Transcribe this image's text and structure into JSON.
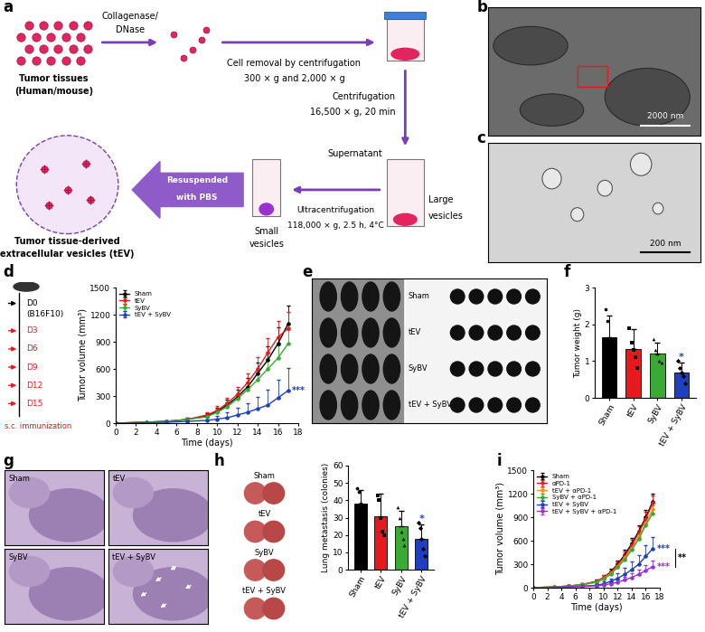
{
  "panel_letters": [
    "a",
    "b",
    "c",
    "d",
    "e",
    "f",
    "g",
    "h",
    "i"
  ],
  "diagram": {
    "tissue": [
      "Tumor tissues",
      "(Human/mouse)"
    ],
    "enzyme": [
      "Collagenase/",
      "DNase"
    ],
    "removal": [
      "Cell removal by centrifugation",
      "300 × g and 2,000 × g"
    ],
    "centrifugation": [
      "Centrifugation",
      "16,500 × g, 20 min"
    ],
    "supernatant": "Supernatant",
    "large": [
      "Large",
      "vesicles"
    ],
    "ultra": [
      "Ultracentrifugation",
      "118,000 × g, 2.5 h, 4°C"
    ],
    "small": [
      "Small",
      "vesicles"
    ],
    "resuspend": [
      "Resuspended",
      "with PBS"
    ],
    "tev": [
      "Tumor tissue-derived",
      "extracellular vesicles (tEV)"
    ]
  },
  "scale_bars": [
    "2000 nm",
    "200 nm"
  ],
  "schedule": {
    "start": [
      "D0",
      "(B16F10)"
    ],
    "days": [
      "D3",
      "D6",
      "D9",
      "D12",
      "D15"
    ],
    "label": "s.c. immunization"
  },
  "photo_labels": [
    "Sham",
    "tEV",
    "SyBV",
    "tEV + SyBV"
  ],
  "histology_labels": [
    "Sham",
    "tEV",
    "SyBV",
    "tEV + SyBV"
  ],
  "lung_labels": [
    "Sham",
    "tEV",
    "SyBV",
    "tEV + SyBV"
  ],
  "chart_data": [
    {
      "type": "line",
      "x_label": "Time (days)",
      "y_label": "Tumor volume (mm³)",
      "x": [
        0,
        3,
        5,
        7,
        9,
        10,
        11,
        12,
        13,
        14,
        15,
        16,
        17
      ],
      "xlim": [
        0,
        18
      ],
      "xticks": [
        0,
        2,
        4,
        6,
        8,
        10,
        12,
        14,
        16,
        18
      ],
      "ylim": [
        0,
        1500
      ],
      "yticks": [
        0,
        300,
        600,
        900,
        1200,
        1500
      ],
      "legend": "upper left",
      "marker": "o",
      "series": [
        {
          "name": "Sham",
          "color": "#000000",
          "values": [
            0,
            10,
            20,
            40,
            80,
            130,
            200,
            290,
            400,
            550,
            700,
            880,
            1100
          ],
          "errors": [
            0,
            5,
            10,
            20,
            30,
            40,
            60,
            80,
            100,
            120,
            150,
            180,
            200
          ]
        },
        {
          "name": "tEV",
          "color": "#e8191c",
          "values": [
            0,
            10,
            20,
            40,
            90,
            140,
            220,
            320,
            450,
            600,
            780,
            950,
            1050
          ],
          "errors": [
            0,
            5,
            10,
            20,
            30,
            50,
            60,
            80,
            100,
            130,
            160,
            180,
            180
          ]
        },
        {
          "name": "SyBV",
          "color": "#3aaa35",
          "values": [
            0,
            10,
            20,
            40,
            70,
            120,
            180,
            270,
            370,
            480,
            600,
            720,
            880
          ],
          "errors": [
            0,
            5,
            10,
            15,
            25,
            35,
            50,
            60,
            80,
            100,
            120,
            140,
            150
          ]
        },
        {
          "name": "tEV + SyBV",
          "color": "#1f3fbf",
          "values": [
            0,
            5,
            10,
            20,
            30,
            45,
            60,
            90,
            120,
            160,
            200,
            280,
            360
          ],
          "errors": [
            0,
            5,
            10,
            15,
            30,
            40,
            60,
            80,
            100,
            130,
            170,
            200,
            250
          ]
        }
      ],
      "annotations": [
        {
          "text": "***",
          "series": "tEV + SyBV"
        }
      ]
    },
    {
      "type": "bar",
      "y_label": "Tumor weight (g)",
      "categories": [
        "Sham",
        "tEV",
        "SyBV",
        "tEV + SyBV"
      ],
      "values": [
        1.64,
        1.32,
        1.21,
        0.7
      ],
      "errors": [
        0.6,
        0.55,
        0.3,
        0.25
      ],
      "points": [
        [
          2.4,
          2.1,
          1.6,
          1.1,
          1.0
        ],
        [
          1.9,
          1.5,
          1.3,
          1.1,
          0.8
        ],
        [
          1.6,
          1.3,
          1.2,
          1.0,
          0.95
        ],
        [
          1.0,
          0.8,
          0.7,
          0.6,
          0.4
        ]
      ],
      "colors": [
        "#000000",
        "#e8191c",
        "#3aaa35",
        "#1f3fbf"
      ],
      "ylim": [
        0,
        3
      ],
      "yticks": [
        0,
        1,
        2,
        3
      ],
      "annotations": [
        {
          "text": "*",
          "category": "tEV + SyBV"
        }
      ]
    },
    {
      "type": "bar",
      "y_label": "Lung metastasis (colonies)",
      "categories": [
        "Sham",
        "tEV",
        "SyBV",
        "tEV + SyBV"
      ],
      "values": [
        38,
        31,
        25,
        18
      ],
      "errors": [
        8,
        13,
        9,
        8
      ],
      "points": [
        [
          47,
          45,
          38,
          33,
          28
        ],
        [
          43,
          40,
          30,
          22,
          20
        ],
        [
          36,
          30,
          22,
          18,
          14
        ],
        [
          27,
          24,
          18,
          12,
          8
        ]
      ],
      "colors": [
        "#000000",
        "#e8191c",
        "#3aaa35",
        "#1f3fbf"
      ],
      "ylim": [
        0,
        60
      ],
      "yticks": [
        0,
        10,
        20,
        30,
        40,
        50,
        60
      ],
      "annotations": [
        {
          "text": "*",
          "category": "tEV + SyBV"
        }
      ]
    },
    {
      "type": "line",
      "x_label": "Time (days)",
      "y_label": "Tumor volume (mm³)",
      "x": [
        0,
        3,
        5,
        7,
        9,
        10,
        11,
        12,
        13,
        14,
        15,
        16,
        17
      ],
      "xlim": [
        0,
        18
      ],
      "xticks": [
        0,
        2,
        4,
        6,
        8,
        10,
        12,
        14,
        16,
        18
      ],
      "ylim": [
        0,
        1500
      ],
      "yticks": [
        0,
        300,
        600,
        900,
        1200,
        1500
      ],
      "legend": "upper left",
      "marker": "o",
      "series": [
        {
          "name": "Sham",
          "color": "#000000",
          "values": [
            0,
            10,
            20,
            40,
            80,
            130,
            200,
            300,
            420,
            560,
            720,
            900,
            1100
          ],
          "errors": [
            0,
            5,
            10,
            15,
            20,
            30,
            40,
            50,
            60,
            70,
            80,
            90,
            100
          ]
        },
        {
          "name": "αPD-1",
          "color": "#e8191c",
          "values": [
            0,
            10,
            20,
            40,
            80,
            130,
            190,
            290,
            400,
            540,
            700,
            880,
            1080
          ],
          "errors": [
            0,
            5,
            10,
            15,
            20,
            30,
            40,
            50,
            60,
            70,
            80,
            90,
            100
          ]
        },
        {
          "name": "tEV + αPD-1",
          "color": "#ff8c1a",
          "values": [
            0,
            10,
            20,
            40,
            70,
            120,
            180,
            270,
            380,
            500,
            650,
            820,
            1000
          ],
          "errors": [
            0,
            5,
            10,
            15,
            20,
            30,
            40,
            50,
            60,
            70,
            80,
            90,
            100
          ]
        },
        {
          "name": "SyBV + αPD-1",
          "color": "#3aaa35",
          "values": [
            0,
            10,
            20,
            40,
            70,
            110,
            170,
            260,
            360,
            480,
            620,
            800,
            950
          ],
          "errors": [
            0,
            5,
            10,
            15,
            20,
            30,
            40,
            50,
            60,
            70,
            80,
            90,
            100
          ]
        },
        {
          "name": "tEV + SyBV",
          "color": "#1f3fbf",
          "values": [
            0,
            5,
            10,
            20,
            30,
            50,
            80,
            120,
            170,
            230,
            300,
            400,
            500
          ],
          "errors": [
            0,
            5,
            10,
            15,
            20,
            30,
            40,
            60,
            80,
            100,
            120,
            140,
            150
          ]
        },
        {
          "name": "tEV + SyBV + αPD-1",
          "color": "#9b30d0",
          "values": [
            0,
            5,
            10,
            15,
            25,
            35,
            50,
            70,
            100,
            130,
            170,
            220,
            270
          ],
          "errors": [
            0,
            5,
            5,
            10,
            15,
            20,
            25,
            30,
            40,
            50,
            60,
            70,
            80
          ]
        }
      ],
      "annotations": [
        {
          "text": "***",
          "series": "tEV + SyBV"
        },
        {
          "text": "***",
          "series": "tEV + SyBV + αPD-1"
        },
        {
          "text": "**",
          "between": [
            "tEV + SyBV",
            "tEV + SyBV + αPD-1"
          ]
        }
      ]
    }
  ]
}
